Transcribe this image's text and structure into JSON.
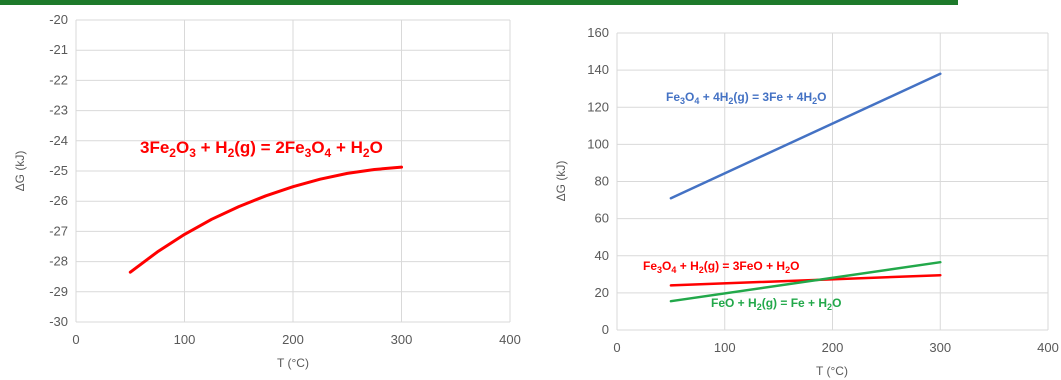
{
  "chart_data": [
    {
      "type": "line",
      "xlabel": "T (°C)",
      "ylabel": "ΔG (kJ)",
      "xlim": [
        0,
        400
      ],
      "ylim": [
        -30,
        -20
      ],
      "xticks": [
        "0",
        "100",
        "200",
        "300",
        "400"
      ],
      "yticks": [
        "-20",
        "-21",
        "-22",
        "-23",
        "-24",
        "-25",
        "-26",
        "-27",
        "-28",
        "-29",
        "-30"
      ],
      "grid": true,
      "series": [
        {
          "name": "3Fe2O3 + H2(g) = 2Fe3O4 + H2O",
          "color": "#ff0000",
          "x": [
            50,
            75,
            100,
            125,
            150,
            175,
            200,
            225,
            250,
            275,
            300
          ],
          "y": [
            -28.35,
            -27.68,
            -27.1,
            -26.6,
            -26.18,
            -25.82,
            -25.52,
            -25.27,
            -25.08,
            -24.95,
            -24.87
          ]
        }
      ],
      "annotations": [
        {
          "text": "3Fe₂O₃ + H₂(g) = 2Fe₃O₄ + H₂O",
          "color": "#ff0000"
        }
      ]
    },
    {
      "type": "line",
      "xlabel": "T (°C)",
      "ylabel": "ΔG (kJ)",
      "xlim": [
        0,
        400
      ],
      "ylim": [
        0,
        160
      ],
      "xticks": [
        "0",
        "100",
        "200",
        "300",
        "400"
      ],
      "yticks": [
        "0",
        "20",
        "40",
        "60",
        "80",
        "100",
        "120",
        "140",
        "160"
      ],
      "grid": true,
      "series": [
        {
          "name": "Fe3O4 + 4H2(g) = 3Fe + 4H2O",
          "color": "#4472c4",
          "x": [
            50,
            300
          ],
          "y": [
            71,
            138
          ]
        },
        {
          "name": "Fe3O4 + H2(g) = 3FeO + H2O",
          "color": "#ff0000",
          "x": [
            50,
            300
          ],
          "y": [
            24,
            29.5
          ]
        },
        {
          "name": "FeO + H2(g) = Fe + H2O",
          "color": "#22a84a",
          "x": [
            50,
            300
          ],
          "y": [
            15.5,
            36.5
          ]
        }
      ],
      "annotations": [
        {
          "text": "Fe₃O₄ + 4H₂(g) = 3Fe + 4H₂O",
          "color": "#4472c4"
        },
        {
          "text": "Fe₃O₄ + H₂(g) = 3FeO + H₂O",
          "color": "#ff0000"
        },
        {
          "text": "FeO + H₂(g) = Fe + H₂O",
          "color": "#22a84a"
        }
      ]
    }
  ]
}
